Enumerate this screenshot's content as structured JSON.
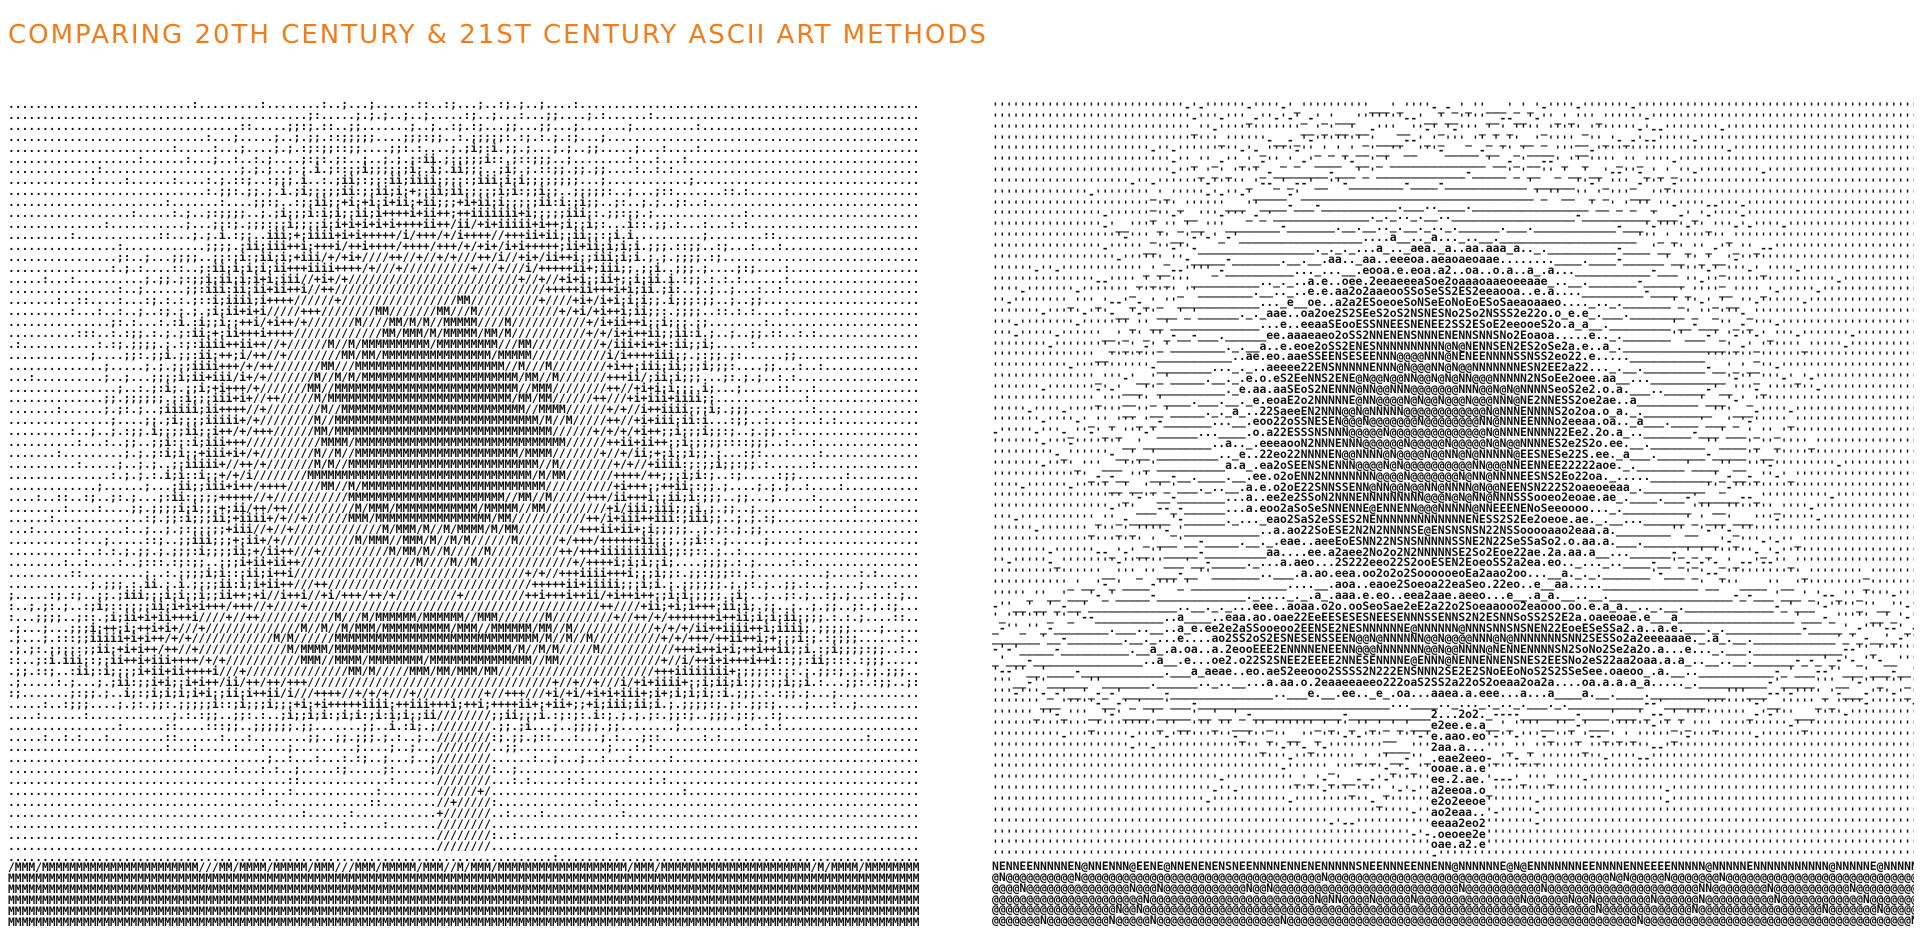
{
  "page": {
    "title": "COMPARING 20TH CENTURY & 21ST CENTURY ASCII ART METHODS"
  },
  "colors": {
    "title": "#f07c1c",
    "art": "#111111",
    "background": "#ffffff"
  }
}
